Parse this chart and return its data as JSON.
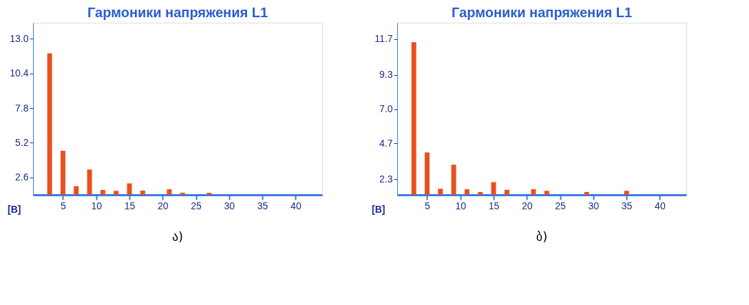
{
  "chart_data": [
    {
      "type": "bar",
      "title": "Гармоники напряжения L1",
      "ylabel": "[B]",
      "annotations": [
        "ა)"
      ],
      "color": "#e8501e",
      "grid": false,
      "x": [
        3,
        5,
        7,
        9,
        11,
        13,
        15,
        17,
        21,
        23,
        27
      ],
      "values": [
        11.9,
        4.6,
        1.95,
        3.2,
        1.67,
        1.6,
        2.16,
        1.62,
        1.72,
        1.46,
        1.46
      ],
      "xlim": [
        0.5,
        44
      ],
      "xticks": [
        5,
        10,
        15,
        20,
        25,
        30,
        35,
        40
      ],
      "ylim": [
        1.3,
        14.2
      ],
      "yticks": [
        {
          "value": 2.6,
          "label": "2.6"
        },
        {
          "value": 5.2,
          "label": "5.2"
        },
        {
          "value": 7.8,
          "label": "7.8"
        },
        {
          "value": 10.4,
          "label": "10.4"
        },
        {
          "value": 13.0,
          "label": "13.0"
        }
      ]
    },
    {
      "type": "bar",
      "title": "Гармоники напряжения L1",
      "ylabel": "[B]",
      "annotations": [
        "ბ)"
      ],
      "color": "#e8501e",
      "grid": false,
      "x": [
        3,
        5,
        7,
        9,
        11,
        13,
        15,
        17,
        21,
        23,
        29,
        35
      ],
      "values": [
        11.5,
        4.1,
        1.67,
        3.28,
        1.64,
        1.45,
        2.11,
        1.6,
        1.64,
        1.53,
        1.45,
        1.53
      ],
      "xlim": [
        0.5,
        44
      ],
      "xticks": [
        5,
        10,
        15,
        20,
        25,
        30,
        35,
        40
      ],
      "ylim": [
        1.26,
        12.8
      ],
      "yticks": [
        {
          "value": 2.3,
          "label": "2.3"
        },
        {
          "value": 4.7,
          "label": "4.7"
        },
        {
          "value": 7.0,
          "label": "7.0"
        },
        {
          "value": 9.3,
          "label": "9.3"
        },
        {
          "value": 11.7,
          "label": "11.7"
        }
      ]
    }
  ]
}
